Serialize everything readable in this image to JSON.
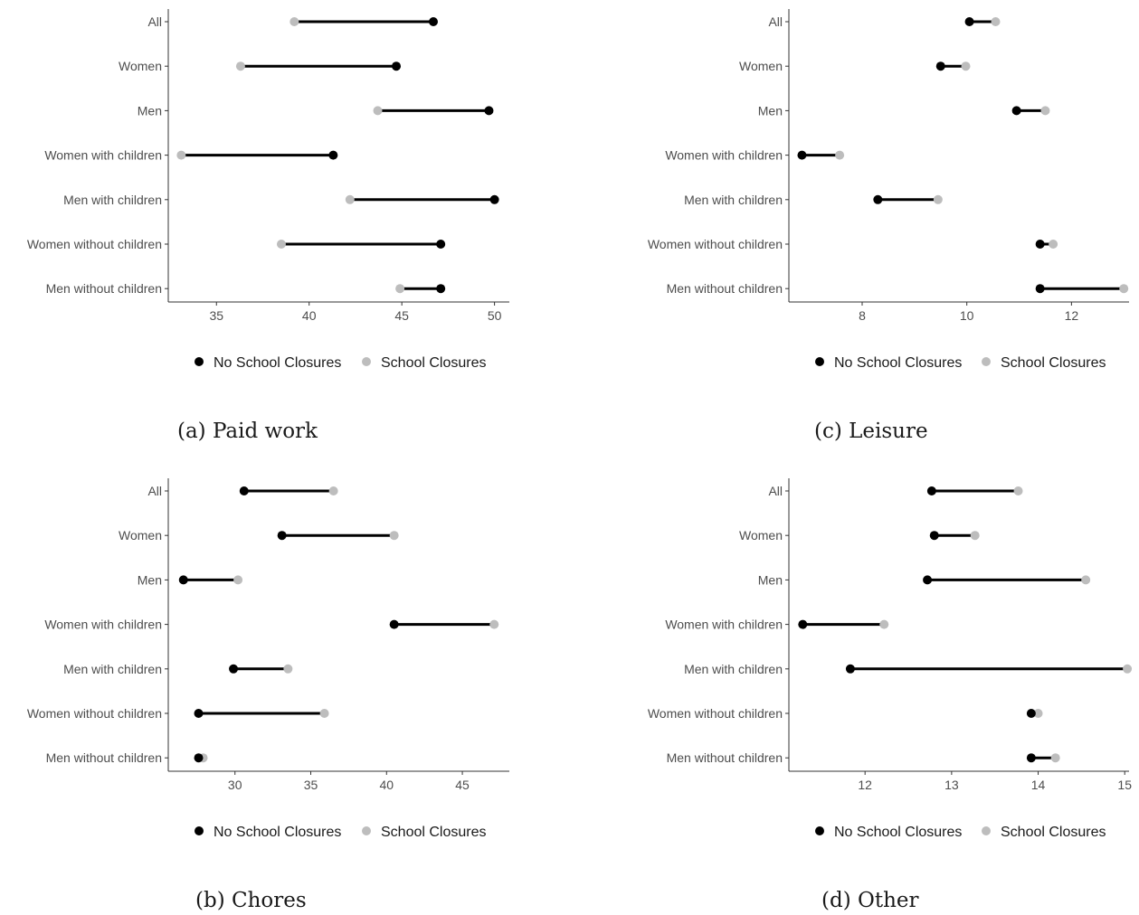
{
  "chart_data": [
    {
      "type": "dumbbell",
      "caption": "(a) Paid work",
      "categories": [
        "All",
        "Women",
        "Men",
        "Women with children",
        "Men with children",
        "Women without children",
        "Men without children"
      ],
      "series": [
        {
          "name": "No School Closures",
          "values": [
            46.7,
            44.7,
            49.7,
            41.3,
            50.0,
            47.1,
            47.1
          ]
        },
        {
          "name": "School Closures",
          "values": [
            39.2,
            36.3,
            43.7,
            33.1,
            42.2,
            38.5,
            44.9
          ]
        }
      ],
      "xlim": [
        32.4,
        50.8
      ],
      "xticks": [
        35,
        40,
        45,
        50
      ]
    },
    {
      "type": "dumbbell",
      "caption": "(b) Chores",
      "categories": [
        "All",
        "Women",
        "Men",
        "Women with children",
        "Men with children",
        "Women without children",
        "Men without children"
      ],
      "series": [
        {
          "name": "No School Closures",
          "values": [
            30.6,
            33.1,
            26.6,
            40.5,
            29.9,
            27.6,
            27.6
          ]
        },
        {
          "name": "School Closures",
          "values": [
            36.5,
            40.5,
            30.2,
            47.1,
            33.5,
            35.9,
            27.9
          ]
        }
      ],
      "xlim": [
        25.6,
        48.1
      ],
      "xticks": [
        30,
        35,
        40,
        45
      ]
    },
    {
      "type": "dumbbell",
      "caption": "(c) Leisure",
      "categories": [
        "All",
        "Women",
        "Men",
        "Women with children",
        "Men with children",
        "Women without children",
        "Men without children"
      ],
      "series": [
        {
          "name": "No School Closures",
          "values": [
            10.05,
            9.5,
            10.95,
            6.85,
            8.3,
            11.4,
            11.4
          ]
        },
        {
          "name": "School Closures",
          "values": [
            10.55,
            9.98,
            11.5,
            7.57,
            9.45,
            11.65,
            13.0
          ]
        }
      ],
      "xlim": [
        6.6,
        13.1
      ],
      "xticks": [
        8,
        10,
        12
      ]
    },
    {
      "type": "dumbbell",
      "caption": "(d) Other",
      "categories": [
        "All",
        "Women",
        "Men",
        "Women with children",
        "Men with children",
        "Women without children",
        "Men without children"
      ],
      "series": [
        {
          "name": "No School Closures",
          "values": [
            12.77,
            12.8,
            12.72,
            11.28,
            11.83,
            13.92,
            13.92
          ]
        },
        {
          "name": "School Closures",
          "values": [
            13.77,
            13.27,
            14.55,
            12.22,
            15.03,
            14.0,
            14.2
          ]
        }
      ],
      "xlim": [
        11.12,
        15.05
      ],
      "xticks": [
        12,
        13,
        14,
        15
      ]
    }
  ],
  "legend": {
    "items": [
      "No School Closures",
      "School Closures"
    ],
    "colors": [
      "#000000",
      "#bdbdbd"
    ]
  }
}
